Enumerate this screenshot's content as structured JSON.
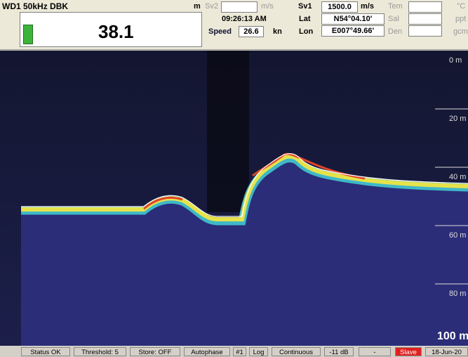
{
  "header": {
    "channel": "WD1 50kHz DBK",
    "depth_unit": "m",
    "depth": "38.1",
    "sv2_label": "Sv2",
    "sv2_unit": "m/s",
    "time": "09:26:13 AM",
    "speed_label": "Speed",
    "speed": "26.6",
    "speed_unit": "kn",
    "sv1_label": "Sv1",
    "sv1": "1500.0",
    "sv1_unit": "m/s",
    "lat_label": "Lat",
    "lat": "N54°04.10'",
    "lon_label": "Lon",
    "lon": "E007°49.66'",
    "tem_label": "Tem",
    "tem_unit": "°C",
    "sal_label": "Sal",
    "sal_unit": "ppt",
    "den_label": "Den",
    "den_unit": "gcm"
  },
  "depth_scale": [
    "0 m",
    "20 m",
    "40 m",
    "60 m",
    "80 m",
    "100 m"
  ],
  "status_bar": [
    "Status OK",
    "Threshold: 5",
    "Store: OFF",
    "Autophase",
    "#1",
    "Log",
    "Continuous",
    "-11 dB",
    "-",
    "Slave",
    "18-Jun-20"
  ]
}
